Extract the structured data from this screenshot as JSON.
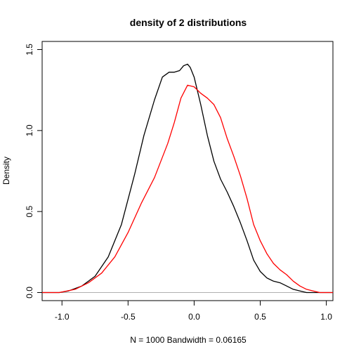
{
  "chart_data": {
    "type": "line",
    "title": "density of 2 distributions",
    "xlabel": "N = 1000   Bandwidth = 0.06165",
    "ylabel": "Density",
    "xlim": [
      -1.15,
      1.05
    ],
    "ylim": [
      -0.05,
      1.55
    ],
    "x_ticks": [
      -1.0,
      -0.5,
      0.0,
      0.5,
      1.0
    ],
    "x_tick_labels": [
      "-1.0",
      "-0.5",
      "0.0",
      "0.5",
      "1.0"
    ],
    "y_ticks": [
      0.0,
      0.5,
      1.0,
      1.5
    ],
    "y_tick_labels": [
      "0.0",
      "0.5",
      "1.0",
      "1.5"
    ],
    "baseline_y": 0,
    "baseline_color": "#b0b0b0",
    "grid": false,
    "series": [
      {
        "color": "#000000",
        "x": [
          -1.02,
          -0.95,
          -0.85,
          -0.75,
          -0.65,
          -0.55,
          -0.45,
          -0.38,
          -0.3,
          -0.24,
          -0.19,
          -0.15,
          -0.11,
          -0.08,
          -0.05,
          -0.03,
          0.0,
          0.05,
          0.1,
          0.15,
          0.2,
          0.25,
          0.3,
          0.35,
          0.4,
          0.45,
          0.5,
          0.55,
          0.6,
          0.65,
          0.7,
          0.75,
          0.8,
          0.85
        ],
        "y": [
          0.0,
          0.01,
          0.04,
          0.1,
          0.22,
          0.42,
          0.73,
          0.97,
          1.19,
          1.33,
          1.36,
          1.36,
          1.37,
          1.4,
          1.41,
          1.39,
          1.33,
          1.16,
          0.97,
          0.81,
          0.7,
          0.62,
          0.53,
          0.43,
          0.32,
          0.2,
          0.13,
          0.09,
          0.07,
          0.06,
          0.04,
          0.02,
          0.01,
          0.0
        ]
      },
      {
        "color": "#ff0000",
        "x": [
          -1.02,
          -0.9,
          -0.8,
          -0.7,
          -0.6,
          -0.5,
          -0.4,
          -0.3,
          -0.2,
          -0.15,
          -0.1,
          -0.05,
          0.0,
          0.05,
          0.1,
          0.15,
          0.2,
          0.25,
          0.3,
          0.35,
          0.4,
          0.45,
          0.5,
          0.55,
          0.6,
          0.65,
          0.7,
          0.75,
          0.8,
          0.85,
          0.9,
          0.95,
          1.0
        ],
        "y": [
          0.0,
          0.02,
          0.06,
          0.12,
          0.22,
          0.37,
          0.55,
          0.71,
          0.92,
          1.05,
          1.2,
          1.28,
          1.27,
          1.23,
          1.2,
          1.16,
          1.08,
          0.95,
          0.84,
          0.72,
          0.58,
          0.42,
          0.32,
          0.24,
          0.18,
          0.14,
          0.11,
          0.07,
          0.04,
          0.02,
          0.01,
          0.0,
          0.0
        ]
      }
    ]
  }
}
